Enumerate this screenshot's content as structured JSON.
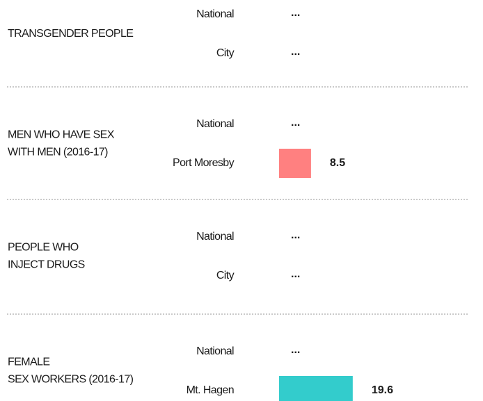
{
  "chart_data": {
    "type": "bar",
    "orientation": "horizontal",
    "groups": [
      {
        "name_lines": [
          "TRANSGENDER PEOPLE"
        ],
        "categories": [
          "National",
          "City"
        ],
        "values": [
          null,
          null
        ],
        "value_labels": [
          "...",
          "..."
        ],
        "color": "#f0b400",
        "label_color": "#f0b400"
      },
      {
        "name_lines": [
          "MEN WHO HAVE SEX",
          "WITH MEN (2016-17)"
        ],
        "categories": [
          "National",
          "Port Moresby"
        ],
        "values": [
          null,
          8.5
        ],
        "value_labels": [
          "...",
          "8.5"
        ],
        "color": "#ff8080",
        "label_color": "#e8604c"
      },
      {
        "name_lines": [
          "PEOPLE WHO",
          "INJECT DRUGS"
        ],
        "categories": [
          "National",
          "City"
        ],
        "values": [
          null,
          null
        ],
        "value_labels": [
          "...",
          "..."
        ],
        "color": "#29a8d8",
        "label_color": "#29a8d8"
      },
      {
        "name_lines": [
          "FEMALE",
          "SEX WORKERS (2016-17)"
        ],
        "categories": [
          "National",
          "Mt. Hagen"
        ],
        "values": [
          null,
          19.6
        ],
        "value_labels": [
          "...",
          "19.6"
        ],
        "color": "#33cccc",
        "label_color": "#1a9080"
      }
    ]
  }
}
